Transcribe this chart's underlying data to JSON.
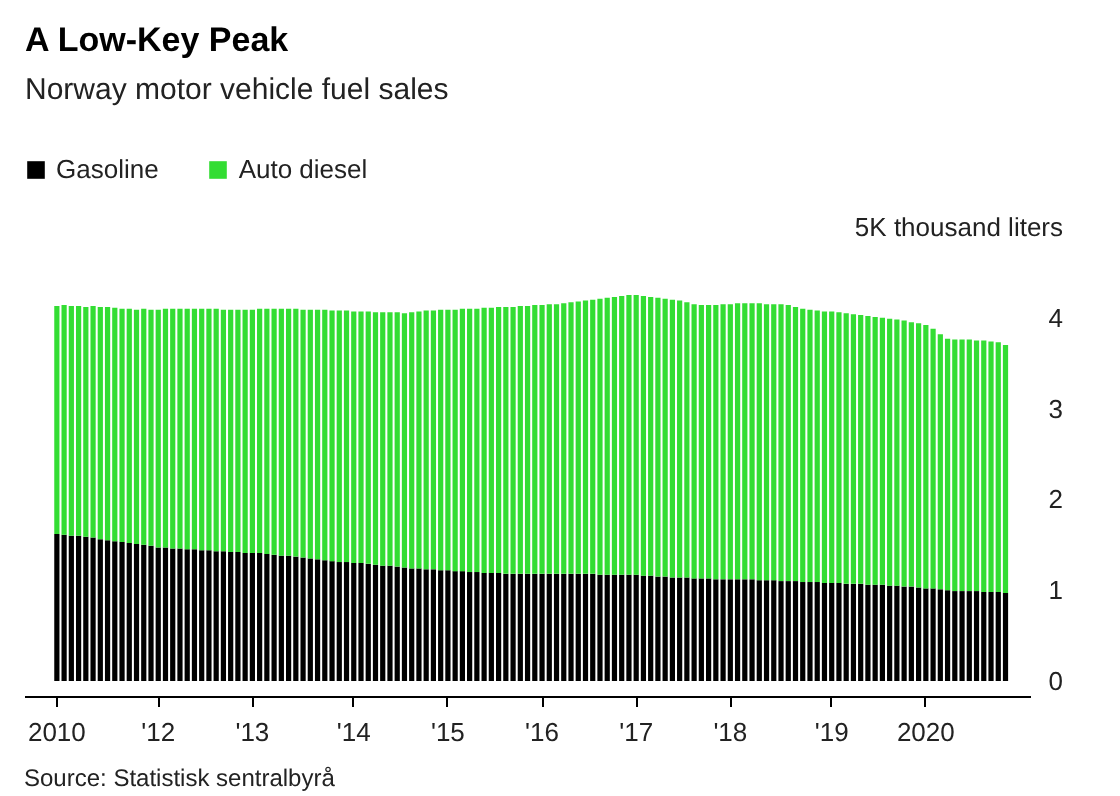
{
  "chart_data": {
    "type": "bar",
    "stacked": true,
    "title": "A Low-Key Peak",
    "subtitle": "Norway motor vehicle fuel sales",
    "categories": [
      "2010",
      null,
      null,
      null,
      null,
      null,
      null,
      null,
      null,
      null,
      null,
      null,
      null,
      null,
      "'12",
      null,
      null,
      null,
      null,
      null,
      null,
      null,
      null,
      null,
      null,
      null,
      null,
      "'13",
      null,
      null,
      null,
      null,
      null,
      null,
      null,
      null,
      null,
      null,
      null,
      null,
      null,
      "'14",
      null,
      null,
      null,
      null,
      null,
      null,
      null,
      null,
      null,
      null,
      null,
      null,
      "'15",
      null,
      null,
      null,
      null,
      null,
      null,
      null,
      null,
      null,
      null,
      null,
      null,
      "'16",
      null,
      null,
      null,
      null,
      null,
      null,
      null,
      null,
      null,
      null,
      null,
      null,
      "'17",
      null,
      null,
      null,
      null,
      null,
      null,
      null,
      null,
      null,
      null,
      null,
      null,
      "'18",
      null,
      null,
      null,
      null,
      null,
      null,
      null,
      null,
      null,
      null,
      null,
      null,
      null,
      "'19",
      null,
      null,
      null,
      null,
      null,
      null,
      null,
      null,
      null,
      null,
      null,
      null,
      "2020",
      null,
      null,
      null,
      null,
      null,
      null,
      null,
      null,
      null,
      null,
      null
    ],
    "series": [
      {
        "name": "Gasoline",
        "color": "#000000",
        "values": [
          1.62,
          1.61,
          1.6,
          1.6,
          1.59,
          1.58,
          1.56,
          1.55,
          1.54,
          1.53,
          1.52,
          1.51,
          1.5,
          1.49,
          1.47,
          1.47,
          1.46,
          1.46,
          1.45,
          1.45,
          1.44,
          1.44,
          1.43,
          1.43,
          1.42,
          1.42,
          1.41,
          1.41,
          1.41,
          1.4,
          1.39,
          1.38,
          1.38,
          1.37,
          1.36,
          1.35,
          1.34,
          1.33,
          1.32,
          1.31,
          1.31,
          1.3,
          1.3,
          1.29,
          1.28,
          1.27,
          1.27,
          1.26,
          1.25,
          1.24,
          1.24,
          1.23,
          1.23,
          1.22,
          1.22,
          1.21,
          1.21,
          1.2,
          1.2,
          1.19,
          1.19,
          1.19,
          1.18,
          1.18,
          1.18,
          1.18,
          1.18,
          1.18,
          1.18,
          1.18,
          1.18,
          1.18,
          1.18,
          1.18,
          1.18,
          1.17,
          1.17,
          1.17,
          1.17,
          1.17,
          1.17,
          1.16,
          1.16,
          1.15,
          1.15,
          1.14,
          1.14,
          1.14,
          1.13,
          1.13,
          1.13,
          1.12,
          1.12,
          1.12,
          1.12,
          1.12,
          1.12,
          1.11,
          1.11,
          1.11,
          1.1,
          1.1,
          1.1,
          1.09,
          1.09,
          1.09,
          1.08,
          1.08,
          1.08,
          1.07,
          1.07,
          1.07,
          1.06,
          1.06,
          1.06,
          1.05,
          1.05,
          1.04,
          1.04,
          1.03,
          1.02,
          1.02,
          1.01,
          1.0,
          0.99,
          0.99,
          0.99,
          0.99,
          0.98,
          0.98,
          0.98,
          0.97
        ]
      },
      {
        "name": "Auto diesel",
        "color": "#33dd33",
        "values": [
          2.51,
          2.53,
          2.53,
          2.53,
          2.53,
          2.55,
          2.56,
          2.57,
          2.57,
          2.57,
          2.58,
          2.58,
          2.6,
          2.6,
          2.62,
          2.63,
          2.64,
          2.64,
          2.65,
          2.65,
          2.66,
          2.66,
          2.67,
          2.66,
          2.67,
          2.67,
          2.68,
          2.68,
          2.69,
          2.7,
          2.71,
          2.72,
          2.72,
          2.73,
          2.73,
          2.74,
          2.75,
          2.76,
          2.76,
          2.77,
          2.77,
          2.77,
          2.77,
          2.78,
          2.78,
          2.79,
          2.79,
          2.8,
          2.8,
          2.82,
          2.83,
          2.85,
          2.85,
          2.87,
          2.87,
          2.88,
          2.89,
          2.9,
          2.9,
          2.92,
          2.92,
          2.93,
          2.94,
          2.94,
          2.95,
          2.95,
          2.96,
          2.96,
          2.97,
          2.97,
          2.98,
          2.99,
          3.0,
          3.01,
          3.02,
          3.04,
          3.05,
          3.06,
          3.07,
          3.08,
          3.08,
          3.08,
          3.07,
          3.07,
          3.06,
          3.06,
          3.05,
          3.03,
          3.02,
          3.01,
          3.01,
          3.02,
          3.03,
          3.03,
          3.04,
          3.04,
          3.04,
          3.05,
          3.04,
          3.04,
          3.05,
          3.04,
          3.02,
          3.01,
          3.0,
          2.99,
          2.99,
          2.99,
          2.98,
          2.98,
          2.97,
          2.96,
          2.96,
          2.95,
          2.94,
          2.94,
          2.93,
          2.93,
          2.91,
          2.91,
          2.9,
          2.86,
          2.81,
          2.77,
          2.77,
          2.77,
          2.77,
          2.76,
          2.77,
          2.76,
          2.75,
          2.73
        ]
      }
    ],
    "ylim": [
      0,
      5
    ],
    "yticks": [
      0,
      1,
      2,
      3,
      4,
      {
        "value": 5,
        "label": "5K thousand liters"
      }
    ],
    "grid": false,
    "legend": "top left",
    "annotations": [
      "Source: Statistisk sentralbyrå"
    ]
  }
}
